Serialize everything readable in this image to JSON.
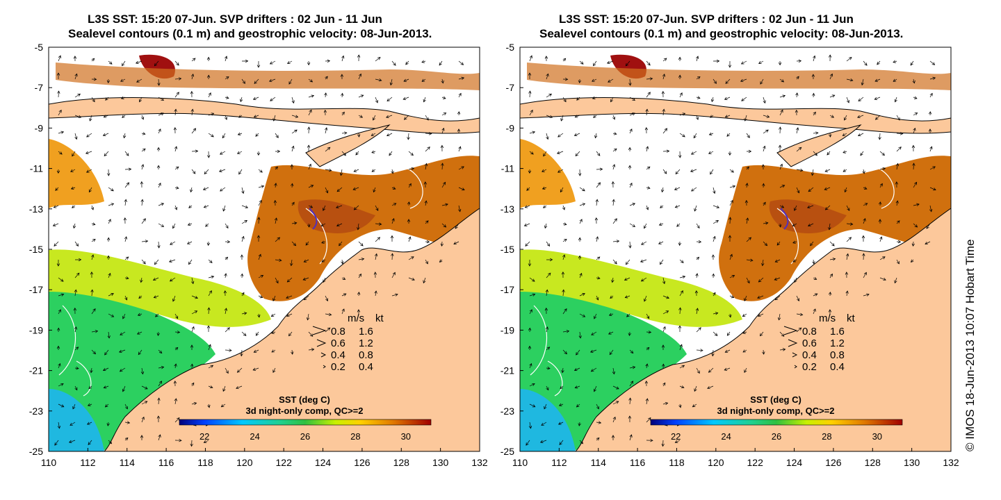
{
  "panels": [
    {
      "title_line1": "L3S SST: 15:20 07-Jun. SVP drifters : 02 Jun - 11 Jun",
      "title_line2": "Sealevel contours (0.1 m) and geostrophic velocity: 08-Jun-2013.",
      "x_ticks": [
        "110",
        "112",
        "114",
        "116",
        "118",
        "120",
        "122",
        "124",
        "126",
        "128",
        "130",
        "132"
      ],
      "y_ticks": [
        "-5",
        "-7",
        "-9",
        "-11",
        "-13",
        "-15",
        "-17",
        "-19",
        "-21",
        "-23",
        "-25"
      ],
      "legend": {
        "header_ms": "m/s",
        "header_kt": "kt",
        "rows": [
          {
            "ms": "0.8",
            "kt": "1.6"
          },
          {
            "ms": "0.6",
            "kt": "1.2"
          },
          {
            "ms": "0.4",
            "kt": "0.8"
          },
          {
            "ms": "0.2",
            "kt": "0.4"
          }
        ]
      },
      "colorbar": {
        "title": "SST (deg C)",
        "subtitle": "3d night-only comp, QC>=2",
        "ticks": [
          "22",
          "24",
          "26",
          "28",
          "30"
        ]
      }
    },
    {
      "title_line1": "L3S SST: 15:20 07-Jun. SVP drifters : 02 Jun - 11 Jun",
      "title_line2": "Sealevel contours (0.1 m) and geostrophic velocity: 08-Jun-2013.",
      "x_ticks": [
        "110",
        "112",
        "114",
        "116",
        "118",
        "120",
        "122",
        "124",
        "126",
        "128",
        "130",
        "132"
      ],
      "y_ticks": [
        "-5",
        "-7",
        "-9",
        "-11",
        "-13",
        "-15",
        "-17",
        "-19",
        "-21",
        "-23",
        "-25"
      ],
      "legend": {
        "header_ms": "m/s",
        "header_kt": "kt",
        "rows": [
          {
            "ms": "0.8",
            "kt": "1.6"
          },
          {
            "ms": "0.6",
            "kt": "1.2"
          },
          {
            "ms": "0.4",
            "kt": "0.8"
          },
          {
            "ms": "0.2",
            "kt": "0.4"
          }
        ]
      },
      "colorbar": {
        "title": "SST (deg C)",
        "subtitle": "3d night-only comp, QC>=2",
        "ticks": [
          "22",
          "24",
          "26",
          "28",
          "30"
        ]
      }
    }
  ],
  "credit": "© IMOS 18-Jun-2013 10:07 Hobart Time",
  "map": {
    "lon_range": [
      110,
      132
    ],
    "lat_range": [
      -25,
      -5
    ],
    "land_color": "#fcc89b",
    "colorbar_range": [
      21,
      31
    ]
  }
}
